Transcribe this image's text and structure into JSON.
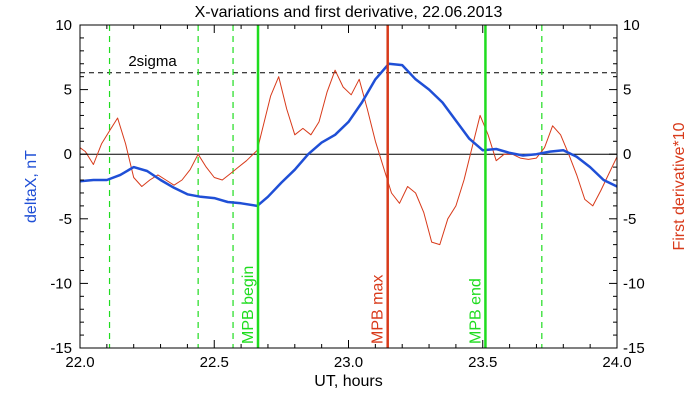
{
  "chart_data": {
    "type": "line",
    "title": "X-variations and first derivative, 22.06.2013",
    "xlabel": "UT, hours",
    "ylabel_left": "deltaX, nT",
    "ylabel_right": "First derivative*10",
    "xlim": [
      22.0,
      24.0
    ],
    "ylim": [
      -15,
      10
    ],
    "x_ticks": [
      22.0,
      22.5,
      23.0,
      23.5,
      24.0
    ],
    "x_tick_labels": [
      "22.0",
      "22.5",
      "23.0",
      "23.5",
      "24.0"
    ],
    "y_ticks": [
      -15,
      -10,
      -5,
      0,
      5,
      10
    ],
    "y_tick_labels": [
      "-15",
      "-10",
      "-5",
      "0",
      "5",
      "10"
    ],
    "colors": {
      "deltaX": "#1f4fd6",
      "derivative": "#d83a1a",
      "mpb_lines": "#1fdc1f",
      "mpb_max_line": "#d83a1a",
      "threshold": "#000000"
    },
    "threshold": {
      "label": "2sigma",
      "value": 6.3
    },
    "zero_line": 0,
    "vertical_markers": [
      {
        "label": "MPB begin",
        "x": 22.663,
        "color": "#1fdc1f",
        "style": "solid"
      },
      {
        "label": "MPB max",
        "x": 23.146,
        "color": "#d83a1a",
        "style": "solid"
      },
      {
        "label": "MPB end",
        "x": 23.51,
        "color": "#1fdc1f",
        "style": "solid"
      }
    ],
    "dashed_markers": [
      22.11,
      22.44,
      22.57,
      23.72
    ],
    "series": [
      {
        "key": "deltaX",
        "x": [
          22.0,
          22.05,
          22.1,
          22.15,
          22.2,
          22.25,
          22.3,
          22.35,
          22.4,
          22.45,
          22.5,
          22.55,
          22.6,
          22.66,
          22.7,
          22.75,
          22.8,
          22.85,
          22.9,
          22.95,
          23.0,
          23.05,
          23.1,
          23.15,
          23.2,
          23.25,
          23.3,
          23.35,
          23.4,
          23.45,
          23.5,
          23.55,
          23.6,
          23.65,
          23.7,
          23.75,
          23.8,
          23.85,
          23.9,
          23.95,
          24.0
        ],
        "y": [
          -2.1,
          -2.0,
          -2.0,
          -1.6,
          -1.0,
          -1.3,
          -2.0,
          -2.6,
          -3.1,
          -3.3,
          -3.4,
          -3.7,
          -3.8,
          -4.0,
          -3.3,
          -2.2,
          -1.2,
          0.0,
          0.9,
          1.5,
          2.5,
          4.0,
          5.8,
          7.0,
          6.9,
          5.8,
          5.0,
          4.0,
          2.6,
          1.2,
          0.3,
          0.4,
          0.1,
          -0.1,
          0.0,
          0.2,
          0.3,
          -0.2,
          -1.0,
          -2.0,
          -2.5
        ]
      },
      {
        "key": "derivative",
        "x": [
          22.0,
          22.02,
          22.05,
          22.08,
          22.11,
          22.14,
          22.17,
          22.2,
          22.23,
          22.26,
          22.29,
          22.32,
          22.35,
          22.38,
          22.41,
          22.44,
          22.47,
          22.5,
          22.53,
          22.56,
          22.59,
          22.62,
          22.66,
          22.68,
          22.71,
          22.74,
          22.77,
          22.8,
          22.83,
          22.86,
          22.89,
          22.92,
          22.95,
          22.98,
          23.01,
          23.04,
          23.07,
          23.1,
          23.13,
          23.16,
          23.19,
          23.22,
          23.25,
          23.28,
          23.31,
          23.34,
          23.37,
          23.4,
          23.43,
          23.46,
          23.49,
          23.52,
          23.55,
          23.58,
          23.61,
          23.64,
          23.67,
          23.7,
          23.73,
          23.76,
          23.79,
          23.82,
          23.85,
          23.88,
          23.91,
          23.94,
          23.97,
          24.0
        ],
        "y": [
          0.5,
          0.2,
          -0.8,
          0.8,
          1.8,
          2.8,
          0.8,
          -1.8,
          -2.5,
          -2.0,
          -1.6,
          -2.0,
          -2.4,
          -2.0,
          -1.2,
          0.0,
          -1.0,
          -1.8,
          -2.0,
          -1.5,
          -1.0,
          -0.5,
          0.3,
          2.0,
          4.5,
          6.0,
          3.5,
          1.5,
          2.0,
          1.5,
          2.5,
          4.8,
          6.5,
          5.2,
          4.6,
          5.8,
          3.5,
          1.0,
          -1.0,
          -3.0,
          -3.8,
          -2.5,
          -3.0,
          -4.5,
          -6.8,
          -7.0,
          -5.0,
          -4.0,
          -2.0,
          0.5,
          3.0,
          1.5,
          -0.5,
          0.0,
          0.0,
          -0.3,
          -0.4,
          -0.3,
          0.5,
          2.2,
          1.5,
          0.0,
          -1.6,
          -3.5,
          -4.0,
          -2.8,
          -1.5,
          -0.2
        ]
      }
    ]
  }
}
